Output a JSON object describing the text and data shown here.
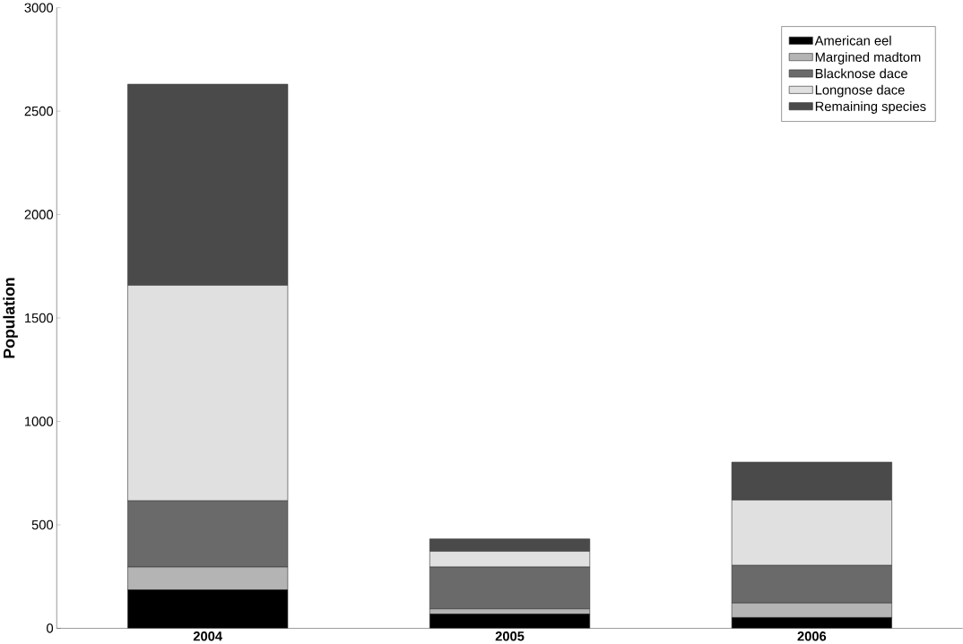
{
  "chart_data": {
    "type": "bar",
    "stacked": true,
    "ylabel": "Population",
    "categories": [
      "2004",
      "2005",
      "2006"
    ],
    "series": [
      {
        "name": "American eel",
        "color": "#000000",
        "values": [
          186,
          69,
          52
        ]
      },
      {
        "name": "Margined madtom",
        "color": "#b4b4b4",
        "values": [
          110,
          25,
          70
        ]
      },
      {
        "name": "Blacknose dace",
        "color": "#6a6a6a",
        "values": [
          320,
          202,
          182
        ]
      },
      {
        "name": "Longnose dace",
        "color": "#e0e0e0",
        "values": [
          1042,
          76,
          316
        ]
      },
      {
        "name": "Remaining species",
        "color": "#4a4a4a",
        "values": [
          972,
          60,
          183
        ]
      }
    ],
    "ylim": [
      0,
      3000
    ],
    "yticks": [
      0,
      500,
      1000,
      1500,
      2000,
      2500,
      3000
    ],
    "legend": "top right"
  }
}
